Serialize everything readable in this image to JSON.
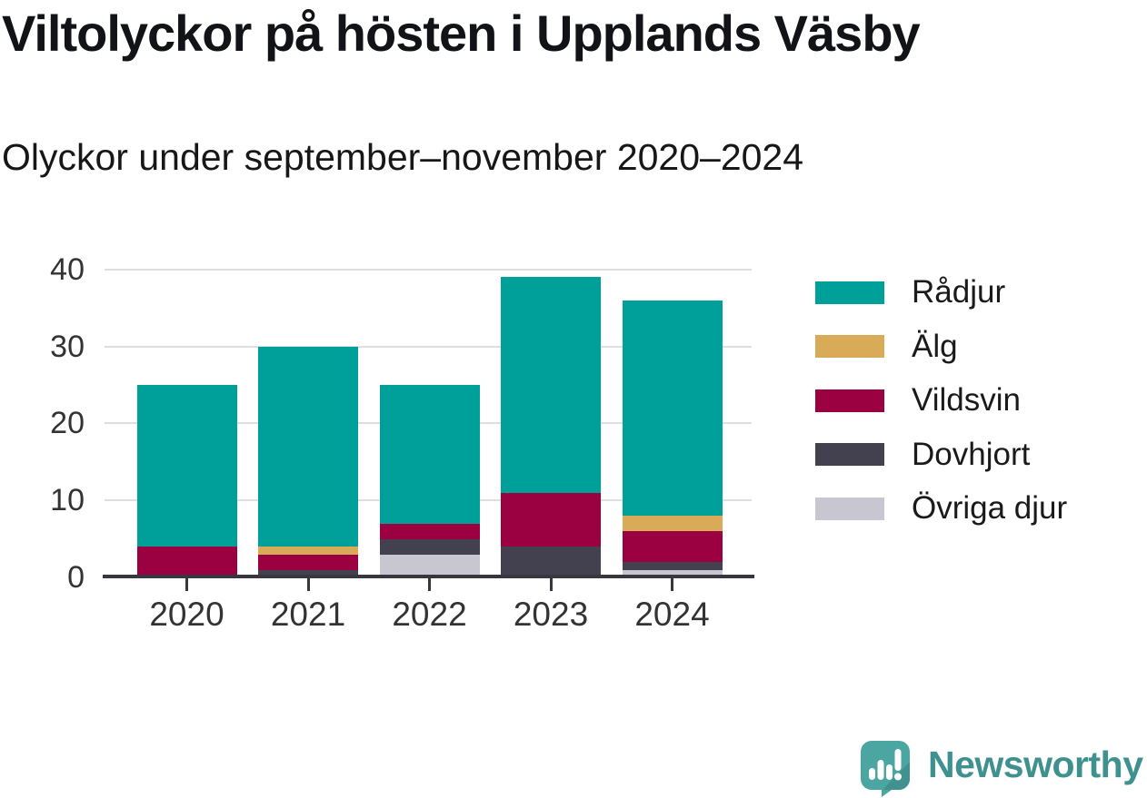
{
  "header": {
    "title": "Viltolyckor på hösten i Upplands Väsby",
    "subtitle": "Olyckor under september–november 2020–2024"
  },
  "chart_data": {
    "type": "bar",
    "stacked": true,
    "title": "Viltolyckor på hösten i Upplands Väsby",
    "subtitle": "Olyckor under september–november 2020–2024",
    "categories": [
      "2020",
      "2021",
      "2022",
      "2023",
      "2024"
    ],
    "series": [
      {
        "name": "Rådjur",
        "color": "#00a09a",
        "values": [
          21,
          26,
          18,
          28,
          28
        ]
      },
      {
        "name": "Älg",
        "color": "#d9aa57",
        "values": [
          0,
          1,
          0,
          0,
          2
        ]
      },
      {
        "name": "Vildsvin",
        "color": "#9b0040",
        "values": [
          4,
          2,
          2,
          7,
          4
        ]
      },
      {
        "name": "Dovhjort",
        "color": "#434150",
        "values": [
          0,
          1,
          2,
          4,
          1
        ]
      },
      {
        "name": "Övriga djur",
        "color": "#c8c7d1",
        "values": [
          0,
          0,
          3,
          0,
          1
        ]
      }
    ],
    "stack_order_bottom_to_top": [
      "Övriga djur",
      "Dovhjort",
      "Vildsvin",
      "Älg",
      "Rådjur"
    ],
    "totals": [
      25,
      30,
      25,
      39,
      36
    ],
    "xlabel": "",
    "ylabel": "",
    "ylim": [
      0,
      40
    ],
    "yticks": [
      0,
      10,
      20,
      30,
      40
    ],
    "grid": true,
    "grid_color": "#dededf",
    "axis_color": "#38363e",
    "tick_label_color": "#333333",
    "legend_position": "right",
    "legend_text_color": "#1a1a1a"
  },
  "branding": {
    "name": "Newsworthy",
    "logo_icon": "newsworthy-speech-bubble-chart-icon",
    "text_color": "#3e918e",
    "icon_color": "#4ba6a2",
    "icon_shadow_color": "#3f8e8b"
  }
}
